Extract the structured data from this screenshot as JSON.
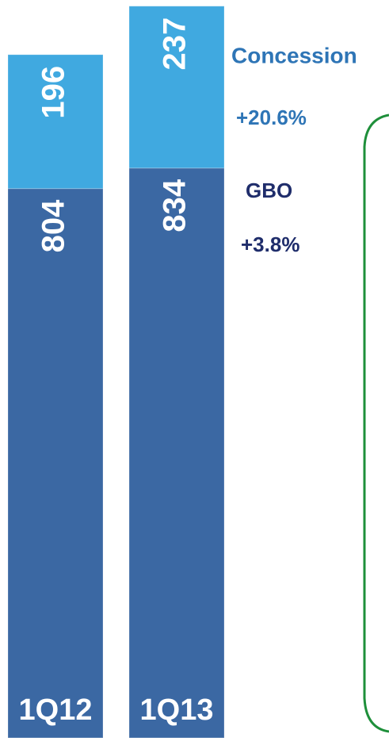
{
  "chart_data": {
    "type": "stacked_bar",
    "categories": [
      "1Q12",
      "1Q13"
    ],
    "series": [
      {
        "name": "GBO",
        "color": "#3b68a3",
        "values": [
          804,
          834
        ]
      },
      {
        "name": "Concession",
        "color": "#40a9e0",
        "values": [
          196,
          237
        ]
      }
    ],
    "annotations": [
      {
        "text": "+20.6%"
      },
      {
        "text": "+3.8%"
      }
    ],
    "ylim": [
      0,
      1080
    ]
  }
}
